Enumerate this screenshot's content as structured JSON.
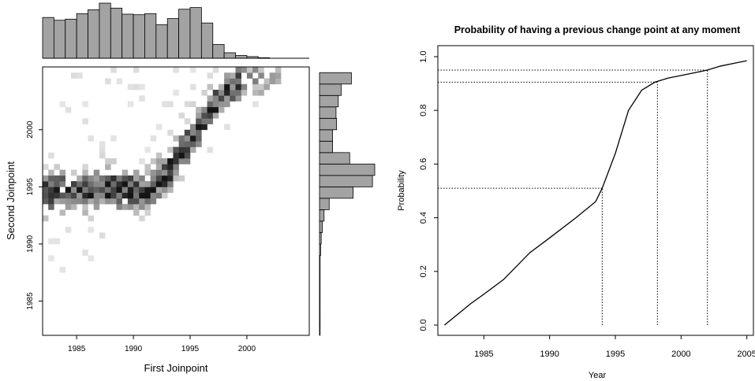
{
  "chart_data": [
    {
      "type": "heatmap",
      "title": "",
      "xlabel": "First Joinpoint",
      "ylabel": "Second Joinpoint",
      "xlim": [
        1982,
        2005.5
      ],
      "ylim": [
        1982,
        2005.5
      ],
      "xticks": [
        "1985",
        "1990",
        "1995",
        "2000"
      ],
      "yticks": [
        "1985",
        "1990",
        "1995",
        "2000"
      ],
      "cell_size_years": 0.5,
      "ridge": {
        "x": [
          1982,
          1985,
          1988,
          1991,
          1993,
          1995,
          1997,
          1999
        ],
        "y": [
          1994.2,
          1994.4,
          1994.6,
          1994.3,
          1996.3,
          1999.2,
          2002.0,
          2004.2
        ]
      },
      "x_hist": {
        "bins": [
          1982,
          1983,
          1984,
          1985,
          1986,
          1987,
          1988,
          1989,
          1990,
          1991,
          1992,
          1993,
          1994,
          1995,
          1996,
          1997,
          1998,
          1999,
          2000,
          2001,
          2002
        ],
        "counts": [
          74,
          69,
          71,
          81,
          88,
          100,
          91,
          80,
          79,
          81,
          61,
          72,
          89,
          92,
          64,
          25,
          10,
          5,
          3,
          1
        ]
      },
      "y_hist": {
        "bins": [
          1982,
          1983,
          1984,
          1985,
          1986,
          1987,
          1988,
          1989,
          1990,
          1991,
          1992,
          1993,
          1994,
          1995,
          1996,
          1997,
          1998,
          1999,
          2000,
          2001,
          2002,
          2003,
          2004,
          2005
        ],
        "counts": [
          1,
          1,
          1,
          1,
          1,
          1,
          1,
          2,
          3,
          5,
          8,
          17,
          59,
          93,
          97,
          53,
          23,
          23,
          30,
          29,
          33,
          38,
          56,
          58
        ]
      }
    },
    {
      "type": "line",
      "title": "Probability of having a previous change point at any moment",
      "xlabel": "Year",
      "ylabel": "Probability",
      "xlim": [
        1981.5,
        2005.5
      ],
      "ylim": [
        0,
        1
      ],
      "xticks": [
        "1985",
        "1990",
        "1995",
        "2000",
        "2005"
      ],
      "yticks": [
        "0.0",
        "0.2",
        "0.4",
        "0.6",
        "0.8",
        "1.0"
      ],
      "series": [
        {
          "x": [
            1982,
            1983,
            1984,
            1985,
            1986.5,
            1988.5,
            1990,
            1992,
            1993.5,
            1994,
            1995,
            1996,
            1997,
            1998,
            1999,
            2000,
            2001,
            2002,
            2003,
            2004,
            2005
          ],
          "values": [
            0.0,
            0.04,
            0.08,
            0.115,
            0.17,
            0.27,
            0.325,
            0.4,
            0.46,
            0.51,
            0.64,
            0.8,
            0.875,
            0.905,
            0.92,
            0.93,
            0.94,
            0.95,
            0.965,
            0.975,
            0.985
          ]
        }
      ],
      "reference_lines": [
        {
          "x": 1994,
          "y": 0.51
        },
        {
          "x": 1998.2,
          "y": 0.905
        },
        {
          "x": 2002,
          "y": 0.95
        }
      ]
    }
  ]
}
